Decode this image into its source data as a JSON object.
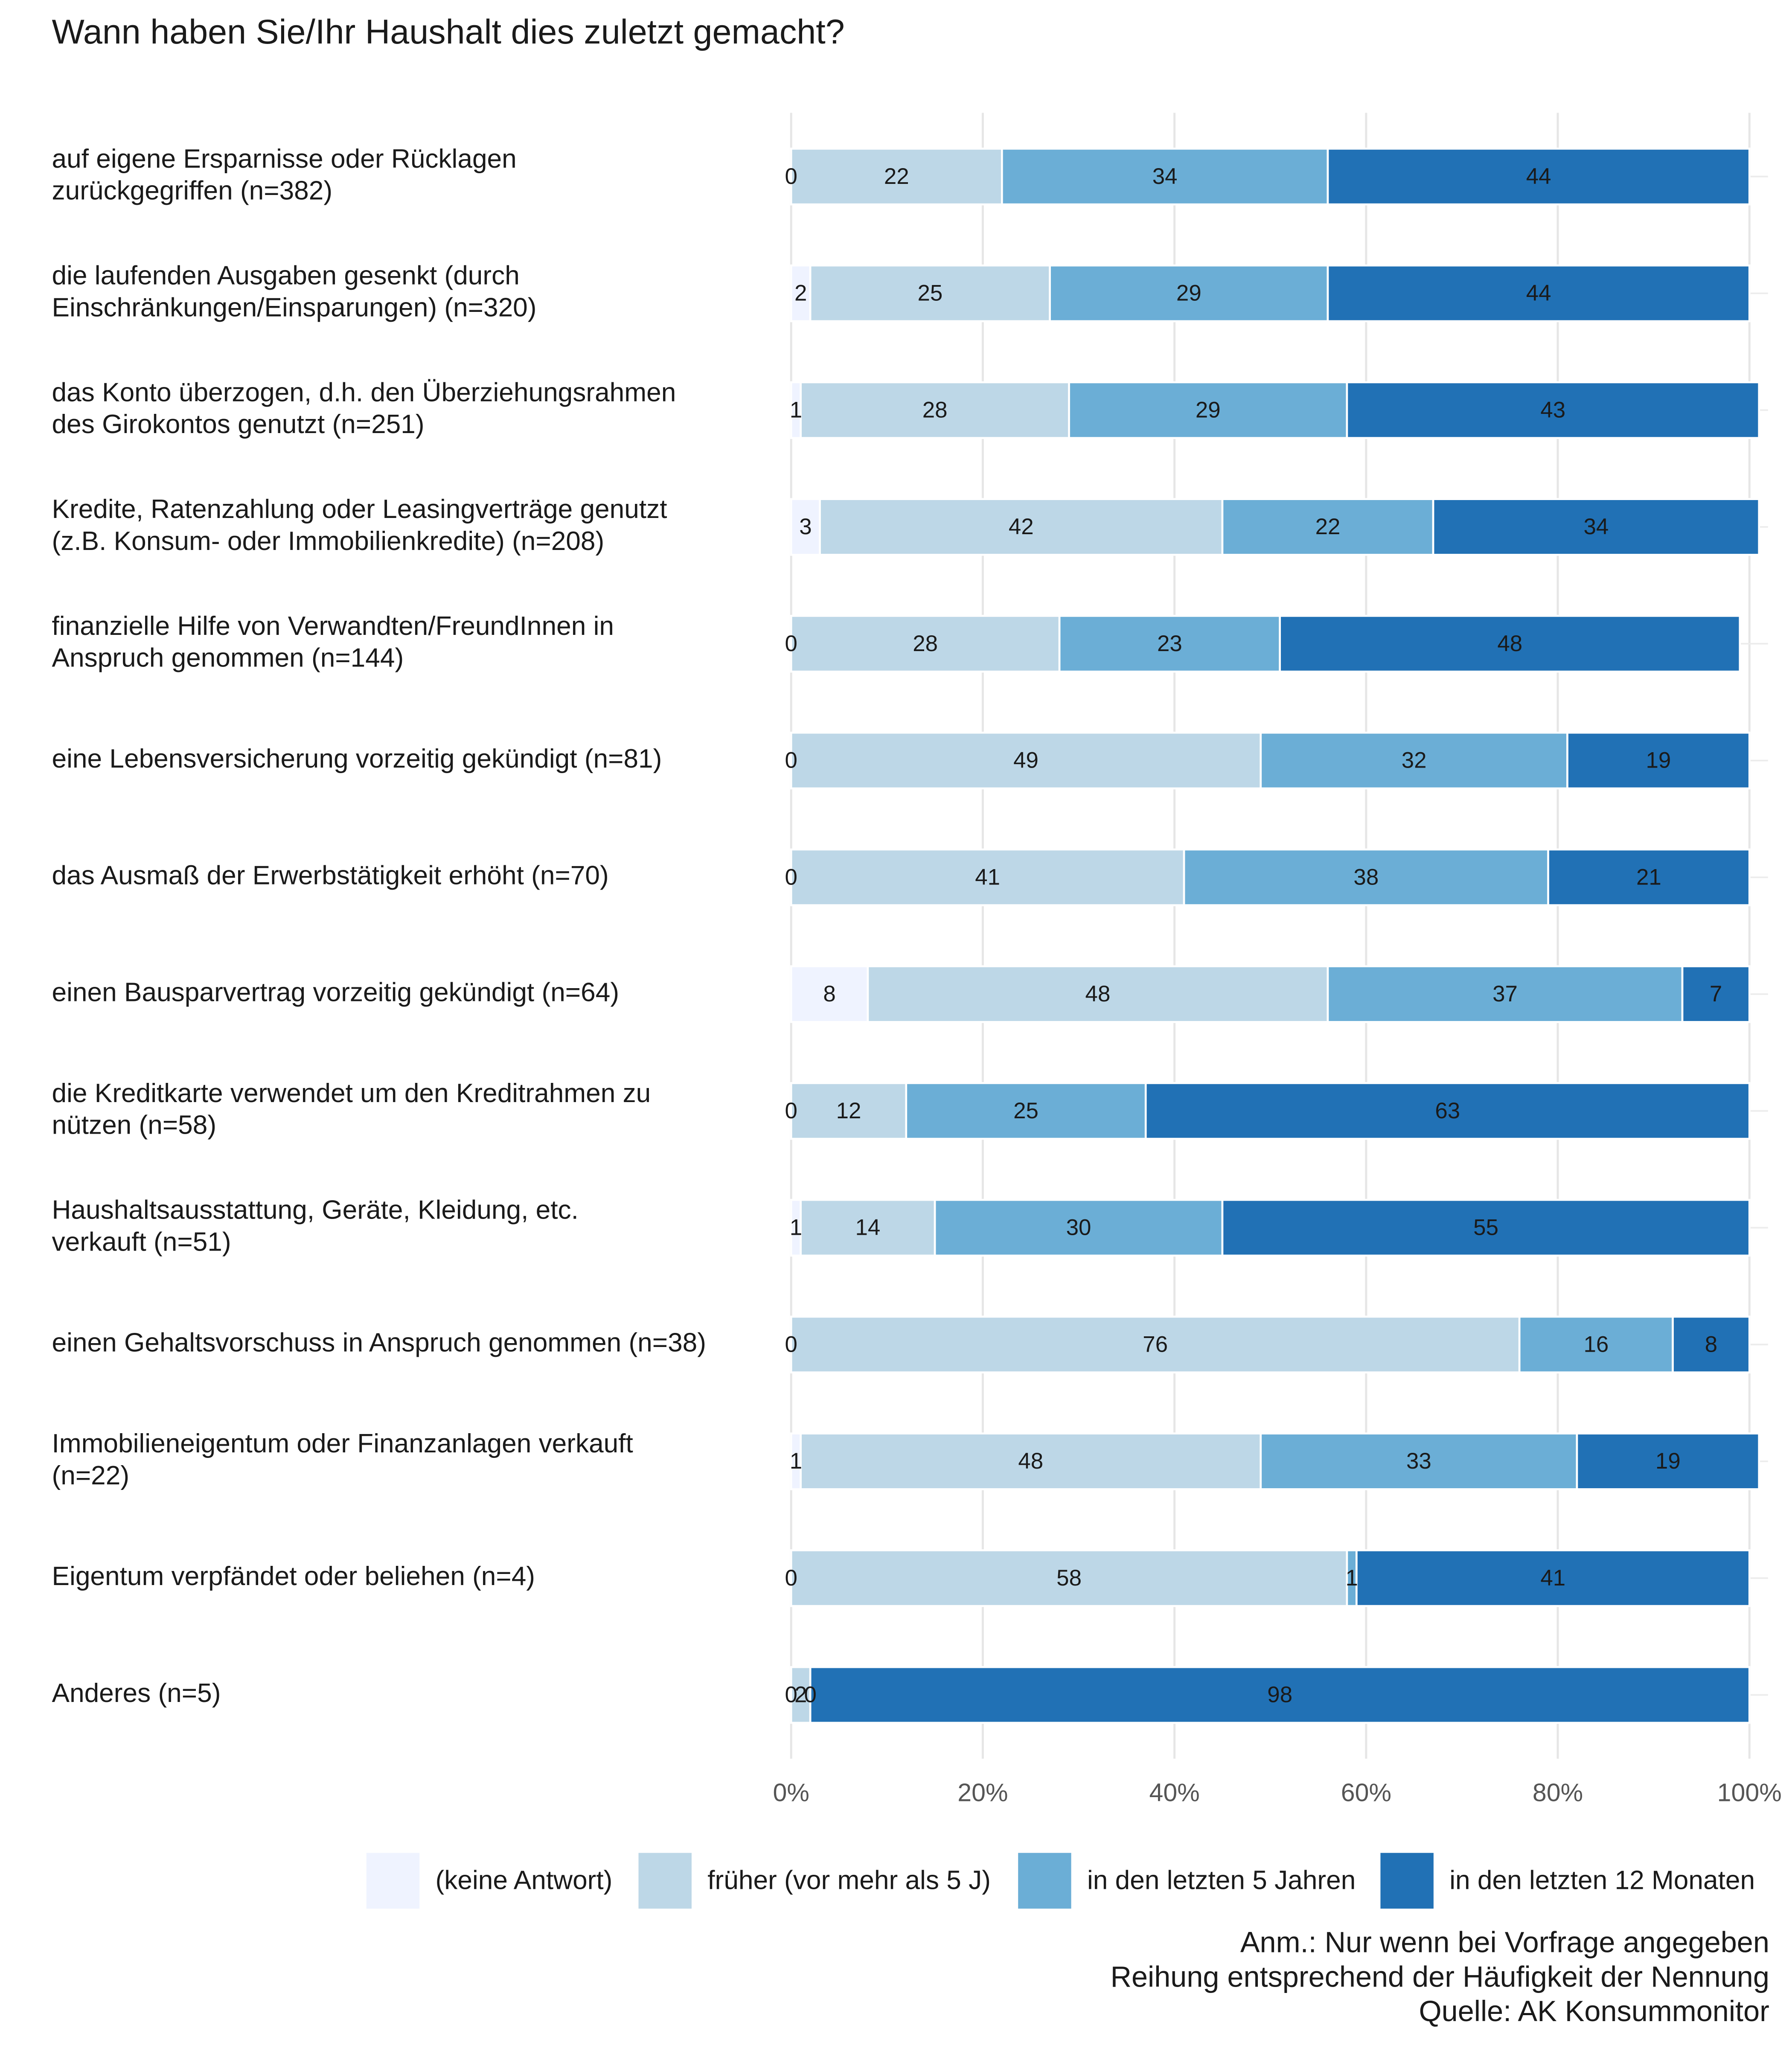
{
  "chart_data": {
    "type": "stacked_barh",
    "title": "Wann haben Sie/Ihr Haushalt dies zuletzt gemacht?",
    "categories": [
      [
        "auf eigene Ersparnisse oder Rücklagen",
        "zurückgegriffen (n=382)"
      ],
      [
        "die laufenden Ausgaben gesenkt (durch",
        "Einschränkungen/Einsparungen) (n=320)"
      ],
      [
        "das Konto überzogen, d.h. den Überziehungsrahmen",
        "des Girokontos genutzt (n=251)"
      ],
      [
        "Kredite, Ratenzahlung oder Leasingverträge genutzt",
        "(z.B. Konsum- oder Immobilienkredite) (n=208)"
      ],
      [
        "finanzielle Hilfe von Verwandten/FreundInnen in",
        "Anspruch genommen (n=144)"
      ],
      [
        "eine Lebensversicherung vorzeitig gekündigt (n=81)"
      ],
      [
        "das Ausmaß der Erwerbstätigkeit erhöht (n=70)"
      ],
      [
        "einen Bausparvertrag vorzeitig gekündigt (n=64)"
      ],
      [
        "die Kreditkarte verwendet um den Kreditrahmen zu",
        "nützen (n=58)"
      ],
      [
        "Haushaltsausstattung, Geräte, Kleidung, etc.",
        "verkauft (n=51)"
      ],
      [
        "einen Gehaltsvorschuss in Anspruch genommen (n=38)"
      ],
      [
        "Immobilieneigentum oder Finanzanlagen verkauft",
        "(n=22)"
      ],
      [
        "Eigentum verpfändet oder beliehen (n=4)"
      ],
      [
        "Anderes (n=5)"
      ]
    ],
    "series": [
      {
        "name": "(keine Antwort)",
        "color": "#eff3ff",
        "values": [
          0,
          2,
          1,
          3,
          0,
          0,
          0,
          8,
          0,
          1,
          0,
          1,
          0,
          0
        ]
      },
      {
        "name": "früher (vor mehr als 5 J)",
        "color": "#bdd7e7",
        "values": [
          22,
          25,
          28,
          42,
          28,
          49,
          41,
          48,
          12,
          14,
          76,
          48,
          58,
          2
        ]
      },
      {
        "name": "in den letzten 5 Jahren",
        "color": "#6baed6",
        "values": [
          34,
          29,
          29,
          22,
          23,
          32,
          38,
          37,
          25,
          30,
          16,
          33,
          1,
          0
        ]
      },
      {
        "name": "in den letzten 12 Monaten",
        "color": "#2171b5",
        "values": [
          44,
          44,
          43,
          34,
          48,
          19,
          21,
          7,
          63,
          55,
          8,
          19,
          41,
          98
        ]
      }
    ],
    "xlim": [
      0,
      100
    ],
    "xticks": [
      {
        "value": 0,
        "label": "0%"
      },
      {
        "value": 20,
        "label": "20%"
      },
      {
        "value": 40,
        "label": "40%"
      },
      {
        "value": 60,
        "label": "60%"
      },
      {
        "value": 80,
        "label": "80%"
      },
      {
        "value": 100,
        "label": "100%"
      }
    ],
    "grid": true,
    "legend": "bottom",
    "notes": [
      "Anm.: Nur wenn bei Vorfrage angegeben",
      "Reihung entsprechend der Häufigkeit der Nennung",
      "Quelle: AK Konsummonitor"
    ]
  }
}
